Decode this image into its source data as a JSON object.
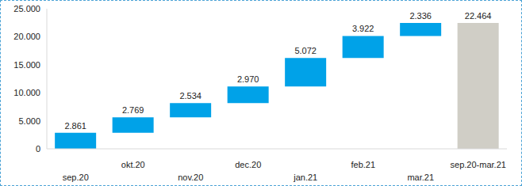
{
  "chart_data": {
    "type": "waterfall",
    "categories": [
      "sep.20",
      "okt.20",
      "nov.20",
      "dec.20",
      "jan.21",
      "feb.21",
      "mar.21",
      "sep.20-mar.21"
    ],
    "values": [
      2861,
      2769,
      2534,
      2970,
      5072,
      3922,
      2336,
      22464
    ],
    "value_labels": [
      "2.861",
      "2.769",
      "2.534",
      "2.970",
      "5.072",
      "3.922",
      "2.336",
      "22.464"
    ],
    "colors": [
      "#00a2e8",
      "#00a2e8",
      "#00a2e8",
      "#00a2e8",
      "#00a2e8",
      "#00a2e8",
      "#00a2e8",
      "#d0cec6"
    ],
    "ylim": [
      0,
      25000
    ],
    "yticks": [
      0,
      {
        "value": 5000,
        "label": "5.000"
      },
      {
        "value": 10000,
        "label": "10.000"
      },
      {
        "value": 15000,
        "label": "15.000"
      },
      {
        "value": 20000,
        "label": "20.000"
      },
      {
        "value": 25000,
        "label": "25.000"
      }
    ],
    "data_labels": true,
    "grid": false
  }
}
